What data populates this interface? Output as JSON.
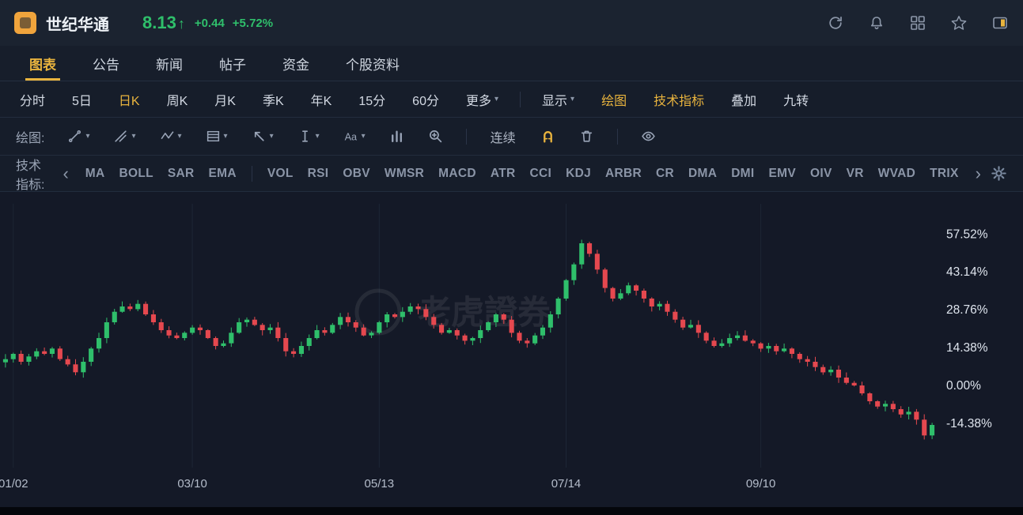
{
  "colors": {
    "up": "#2fbf6b",
    "down": "#e5484f",
    "accent": "#e9b43e"
  },
  "icons": {
    "caret": "▾",
    "chevron_left": "‹",
    "chevron_right": "›",
    "font_label": "Aa"
  },
  "header": {
    "stock_name": "世纪华通",
    "price": "8.13",
    "direction_arrow": "↑",
    "change_value": "+0.44",
    "change_percent": "+5.72%"
  },
  "nav_tabs": [
    {
      "name": "chart",
      "label": "图表",
      "active": true
    },
    {
      "name": "announcements",
      "label": "公告"
    },
    {
      "name": "news",
      "label": "新闻"
    },
    {
      "name": "posts",
      "label": "帖子"
    },
    {
      "name": "capital-flow",
      "label": "资金"
    },
    {
      "name": "stock-profile",
      "label": "个股资料"
    }
  ],
  "period_bar": {
    "items": [
      {
        "name": "intraday",
        "label": "分时"
      },
      {
        "name": "5day",
        "label": "5日"
      },
      {
        "name": "daily-k",
        "label": "日K",
        "active": true
      },
      {
        "name": "weekly-k",
        "label": "周K"
      },
      {
        "name": "monthly-k",
        "label": "月K"
      },
      {
        "name": "quarterly-k",
        "label": "季K"
      },
      {
        "name": "yearly-k",
        "label": "年K"
      },
      {
        "name": "15min",
        "label": "15分"
      },
      {
        "name": "60min",
        "label": "60分"
      },
      {
        "name": "more",
        "label": "更多",
        "caret": true
      }
    ],
    "tools": [
      {
        "name": "display",
        "label": "显示",
        "caret": true
      },
      {
        "name": "drawing",
        "label": "绘图",
        "accent": true
      },
      {
        "name": "technical-indicator",
        "label": "技术指标",
        "accent": true
      },
      {
        "name": "overlay",
        "label": "叠加"
      },
      {
        "name": "nine-turn",
        "label": "九转"
      }
    ]
  },
  "draw_bar": {
    "label": "绘图:",
    "continuous_label": "连续"
  },
  "indicator_bar": {
    "label": "技术指标:",
    "group1": [
      "MA",
      "BOLL",
      "SAR",
      "EMA"
    ],
    "group2": [
      "VOL",
      "RSI",
      "OBV",
      "WMSR",
      "MACD",
      "ATR",
      "CCI",
      "KDJ",
      "ARBR",
      "CR",
      "DMA",
      "DMI",
      "EMV",
      "OIV",
      "VR",
      "WVAD",
      "TRIX"
    ]
  },
  "chart_data": {
    "type": "candlestick",
    "title": "世纪华通 日K 涨跌幅",
    "watermark": "老虎證券",
    "up_color": "#2fbf6b",
    "down_color": "#e5484f",
    "y_axis": {
      "unit": "%",
      "range": [
        -27,
        66
      ],
      "values": [
        57.52,
        43.14,
        28.76,
        14.38,
        0.0,
        -14.38
      ],
      "ticks": [
        "57.52%",
        "43.14%",
        "28.76%",
        "14.38%",
        "0.00%",
        "-14.38%"
      ]
    },
    "x_axis": {
      "ticks": [
        "01/02",
        "03/10",
        "05/13",
        "07/14",
        "09/10"
      ],
      "tick_indices": [
        1,
        24,
        48,
        72,
        97
      ]
    },
    "closes_pct": [
      10,
      12,
      9,
      11,
      13,
      12,
      14,
      10,
      8,
      5,
      9,
      14,
      18,
      24,
      28,
      30,
      29,
      31,
      27,
      24,
      21,
      19,
      18,
      20,
      22,
      21,
      18,
      15,
      16,
      20,
      24,
      25,
      23,
      21,
      22,
      18,
      13,
      12,
      15,
      18,
      21,
      20,
      23,
      26,
      24,
      22,
      19,
      20,
      24,
      27,
      26,
      28,
      30,
      29,
      26,
      23,
      20,
      21,
      19,
      17,
      18,
      21,
      24,
      27,
      25,
      20,
      17,
      16,
      19,
      22,
      27,
      33,
      40,
      46,
      54,
      50,
      44,
      37,
      33,
      35,
      38,
      36,
      33,
      30,
      31,
      28,
      25,
      22,
      23,
      20,
      17,
      15,
      16,
      18,
      19,
      17,
      16,
      14,
      15,
      13,
      14,
      12,
      10,
      9,
      7,
      5,
      6,
      3,
      1,
      0,
      -3,
      -6,
      -8,
      -7,
      -9,
      -11,
      -10,
      -13,
      -19,
      -15
    ]
  }
}
